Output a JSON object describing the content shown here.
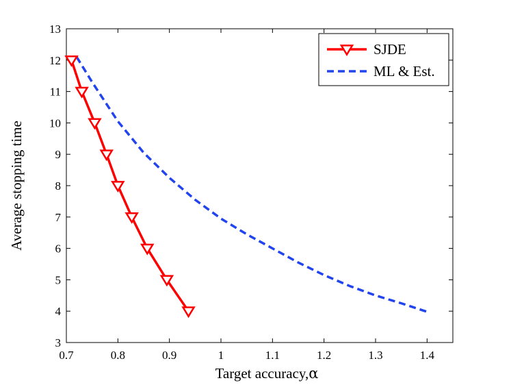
{
  "chart_data": {
    "type": "line",
    "title": "",
    "xlabel": "Target accuracy,",
    "xlabel_symbol": "α",
    "ylabel": "Average stopping time",
    "xlim": [
      0.7,
      1.45
    ],
    "ylim": [
      3,
      13
    ],
    "xticks": [
      0.7,
      0.8,
      0.9,
      1,
      1.1,
      1.2,
      1.3,
      1.4
    ],
    "xtick_labels": [
      "0.7",
      "0.8",
      "0.9",
      "1",
      "1.1",
      "1.2",
      "1.3",
      "1.4"
    ],
    "yticks": [
      3,
      4,
      5,
      6,
      7,
      8,
      9,
      10,
      11,
      12,
      13
    ],
    "ytick_labels": [
      "3",
      "4",
      "5",
      "6",
      "7",
      "8",
      "9",
      "10",
      "11",
      "12",
      "13"
    ],
    "legend_position": "top-right",
    "series": [
      {
        "name": "SJDE",
        "color": "#ff0000",
        "style": "solid",
        "marker": "triangle-down",
        "x": [
          0.71,
          0.73,
          0.755,
          0.778,
          0.8,
          0.827,
          0.857,
          0.895,
          0.937
        ],
        "y": [
          12,
          11,
          10,
          9,
          8,
          7,
          6,
          5,
          4
        ]
      },
      {
        "name": "ML & Est.",
        "color": "#2244ee",
        "style": "dashed",
        "marker": "none",
        "x": [
          0.72,
          0.75,
          0.8,
          0.85,
          0.9,
          0.95,
          1.0,
          1.05,
          1.1,
          1.15,
          1.2,
          1.25,
          1.3,
          1.35,
          1.4
        ],
        "y": [
          12.1,
          11.3,
          10.05,
          9.05,
          8.25,
          7.55,
          6.95,
          6.45,
          6.0,
          5.55,
          5.15,
          4.8,
          4.5,
          4.25,
          3.98
        ]
      }
    ]
  }
}
